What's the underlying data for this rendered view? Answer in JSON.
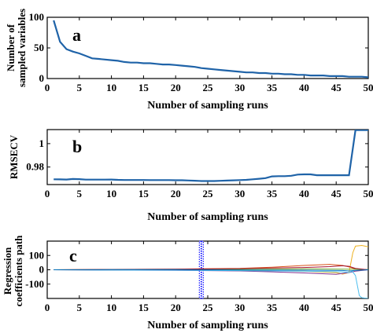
{
  "chart_data": [
    {
      "type": "line",
      "panel_label": "a",
      "xlabel": "Number of sampling runs",
      "ylabel_lines": [
        "Number of",
        "sampled variables"
      ],
      "xlim": [
        0,
        50
      ],
      "ylim": [
        0,
        100
      ],
      "xticks": [
        0,
        5,
        10,
        15,
        20,
        25,
        30,
        35,
        40,
        45,
        50
      ],
      "yticks": [
        0,
        50,
        100
      ],
      "grid": false,
      "series": [
        {
          "color": "#1f63a8",
          "x": [
            1,
            2,
            3,
            4,
            5,
            6,
            7,
            8,
            9,
            10,
            11,
            12,
            13,
            14,
            15,
            16,
            17,
            18,
            19,
            20,
            21,
            22,
            23,
            24,
            25,
            26,
            27,
            28,
            29,
            30,
            31,
            32,
            33,
            34,
            35,
            36,
            37,
            38,
            39,
            40,
            41,
            42,
            43,
            44,
            45,
            46,
            47,
            48,
            49,
            50
          ],
          "y": [
            95,
            60,
            48,
            44,
            41,
            37,
            33,
            32,
            31,
            30,
            29,
            27,
            26,
            26,
            25,
            25,
            24,
            23,
            23,
            22,
            21,
            20,
            19,
            17,
            16,
            15,
            14,
            13,
            12,
            11,
            10,
            10,
            9,
            9,
            8,
            8,
            7,
            7,
            6,
            6,
            5,
            5,
            5,
            4,
            4,
            4,
            3,
            3,
            3,
            2
          ]
        }
      ]
    },
    {
      "type": "line",
      "panel_label": "b",
      "xlabel": "Number of sampling runs",
      "ylabel_lines": [
        "RMSECV"
      ],
      "xlim": [
        0,
        50
      ],
      "ylim": [
        0.965,
        1.012
      ],
      "xticks": [
        0,
        5,
        10,
        15,
        20,
        25,
        30,
        35,
        40,
        45,
        50
      ],
      "yticks": [
        0.98,
        1
      ],
      "grid": false,
      "series": [
        {
          "color": "#1f63a8",
          "x": [
            1,
            2,
            3,
            4,
            5,
            6,
            7,
            8,
            9,
            10,
            11,
            12,
            13,
            14,
            15,
            16,
            17,
            18,
            19,
            20,
            21,
            22,
            23,
            24,
            25,
            26,
            27,
            28,
            29,
            30,
            31,
            32,
            33,
            34,
            35,
            36,
            37,
            38,
            39,
            40,
            41,
            42,
            43,
            44,
            45,
            46,
            47,
            48,
            49,
            50
          ],
          "y": [
            0.9695,
            0.9694,
            0.9693,
            0.9698,
            0.9696,
            0.9692,
            0.9692,
            0.9692,
            0.9692,
            0.9693,
            0.969,
            0.9689,
            0.9689,
            0.9689,
            0.9689,
            0.9688,
            0.9688,
            0.9688,
            0.9688,
            0.9687,
            0.9687,
            0.9685,
            0.9683,
            0.968,
            0.968,
            0.968,
            0.9682,
            0.9684,
            0.9686,
            0.9688,
            0.969,
            0.9695,
            0.97,
            0.9705,
            0.972,
            0.9722,
            0.9722,
            0.9725,
            0.9735,
            0.9737,
            0.9737,
            0.973,
            0.973,
            0.973,
            0.973,
            0.973,
            0.973,
            1.0115,
            1.0115,
            1.0115
          ]
        }
      ]
    },
    {
      "type": "line",
      "panel_label": "c",
      "xlabel": "Number of sampling runs",
      "ylabel_lines": [
        "Regression",
        "coefficients path"
      ],
      "xlim": [
        0,
        50
      ],
      "ylim": [
        -200,
        200
      ],
      "xticks": [
        0,
        5,
        10,
        15,
        20,
        25,
        30,
        35,
        40,
        45,
        50
      ],
      "yticks": [
        -100,
        0,
        100
      ],
      "grid": false,
      "marker": {
        "x": 24,
        "color": "#1a1aff",
        "style": "dotted-band"
      },
      "series": [
        {
          "color": "#d95319",
          "x": [
            1,
            10,
            20,
            30,
            35,
            40,
            44,
            46,
            47,
            48,
            49,
            50
          ],
          "y": [
            0,
            3,
            5,
            10,
            18,
            30,
            38,
            30,
            20,
            5,
            2,
            0
          ]
        },
        {
          "color": "#edb120",
          "x": [
            1,
            10,
            20,
            30,
            40,
            45,
            46,
            47,
            47.6,
            48,
            49,
            50
          ],
          "y": [
            0,
            -1,
            -2,
            -3,
            -10,
            -20,
            -30,
            -20,
            120,
            165,
            170,
            160
          ]
        },
        {
          "color": "#7e2f8e",
          "x": [
            1,
            10,
            20,
            30,
            35,
            40,
            45,
            46,
            47,
            48,
            49,
            50
          ],
          "y": [
            0,
            -2,
            -4,
            -8,
            -14,
            -22,
            -32,
            -25,
            -20,
            -10,
            -5,
            0
          ]
        },
        {
          "color": "#77ac30",
          "x": [
            1,
            10,
            20,
            30,
            40,
            47,
            50
          ],
          "y": [
            0,
            1,
            2,
            3,
            6,
            4,
            2
          ]
        },
        {
          "color": "#4dbeee",
          "x": [
            1,
            10,
            20,
            30,
            40,
            46,
            47,
            47.5,
            48,
            48.6,
            49,
            50
          ],
          "y": [
            0,
            -2,
            -3,
            -6,
            -10,
            -14,
            -20,
            -10,
            -40,
            -180,
            -195,
            -200
          ]
        },
        {
          "color": "#a2142f",
          "x": [
            1,
            10,
            20,
            30,
            35,
            40,
            44,
            46,
            47,
            48,
            50
          ],
          "y": [
            0,
            2,
            4,
            8,
            12,
            16,
            22,
            28,
            24,
            10,
            0
          ]
        },
        {
          "color": "#0072bd",
          "x": [
            1,
            10,
            20,
            30,
            40,
            46,
            47,
            48,
            50
          ],
          "y": [
            0,
            1,
            1,
            -1,
            -3,
            -5,
            -8,
            -4,
            0
          ]
        }
      ]
    }
  ]
}
